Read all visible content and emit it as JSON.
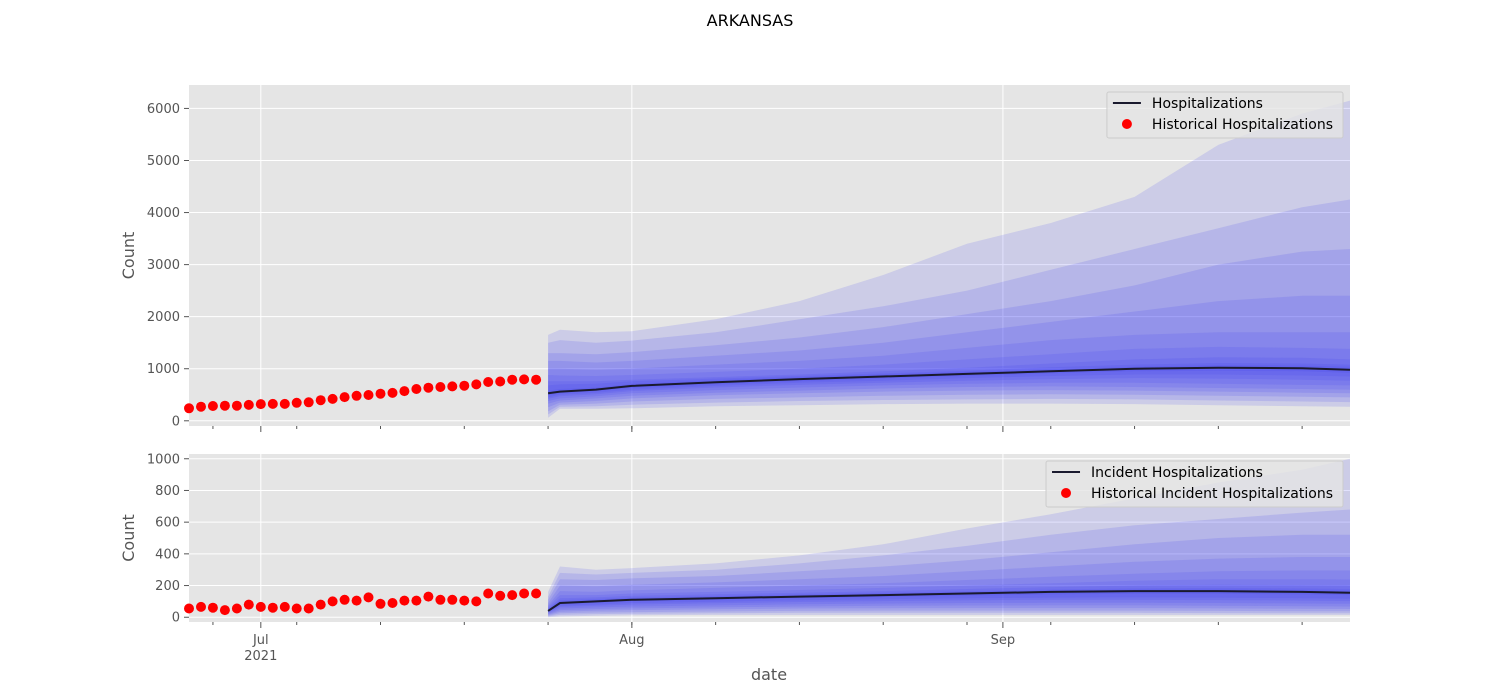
{
  "title": "ARKANSAS",
  "xlabel": "date",
  "x_ticks": [
    {
      "date": "2021-07-01",
      "label": "Jul",
      "sublabel": "2021"
    },
    {
      "date": "2021-08-01",
      "label": "Aug",
      "sublabel": ""
    },
    {
      "date": "2021-09-01",
      "label": "Sep",
      "sublabel": ""
    }
  ],
  "colors": {
    "background": "#e5e5e5",
    "grid": "#ffffff",
    "band": "#3b3bf0",
    "median": "#1a1a2e",
    "historical": "#ff0000"
  },
  "chart_data": [
    {
      "type": "line",
      "ylabel": "Count",
      "xlim": [
        "2021-06-25",
        "2021-09-30"
      ],
      "ylim": [
        -100,
        6450
      ],
      "yticks": [
        0,
        1000,
        2000,
        3000,
        4000,
        5000,
        6000
      ],
      "grid": true,
      "legend_position": "top-right",
      "legend": [
        {
          "label": "Hospitalizations",
          "marker": "line"
        },
        {
          "label": "Historical Hospitalizations",
          "marker": "dot"
        }
      ],
      "historical": {
        "name": "Historical Hospitalizations",
        "start": "2021-06-25",
        "values": [
          240,
          270,
          285,
          290,
          290,
          305,
          320,
          325,
          325,
          345,
          355,
          395,
          420,
          455,
          480,
          495,
          520,
          535,
          570,
          610,
          635,
          650,
          660,
          675,
          700,
          745,
          755,
          790,
          795,
          790
        ]
      },
      "forecast": {
        "name": "Hospitalizations",
        "x": [
          "2021-07-25",
          "2021-07-26",
          "2021-07-29",
          "2021-08-01",
          "2021-08-08",
          "2021-08-15",
          "2021-08-22",
          "2021-08-29",
          "2021-09-05",
          "2021-09-12",
          "2021-09-19",
          "2021-09-26",
          "2021-09-30"
        ],
        "median": [
          530,
          560,
          600,
          670,
          740,
          800,
          850,
          900,
          950,
          1000,
          1020,
          1010,
          980
        ],
        "bands": [
          {
            "level": 0.98,
            "lower": [
              60,
              230,
              230,
              240,
              280,
              300,
              320,
              330,
              330,
              320,
              300,
              280,
              270
            ],
            "upper": [
              1650,
              1750,
              1700,
              1720,
              1950,
              2300,
              2800,
              3400,
              3800,
              4300,
              5300,
              5900,
              6150
            ]
          },
          {
            "level": 0.95,
            "lower": [
              120,
              270,
              280,
              310,
              350,
              380,
              400,
              410,
              420,
              410,
              390,
              370,
              360
            ],
            "upper": [
              1500,
              1550,
              1500,
              1540,
              1700,
              1950,
              2200,
              2500,
              2900,
              3300,
              3700,
              4100,
              4250
            ]
          },
          {
            "level": 0.9,
            "lower": [
              180,
              310,
              330,
              370,
              420,
              450,
              480,
              500,
              510,
              500,
              480,
              460,
              450
            ],
            "upper": [
              1300,
              1300,
              1280,
              1320,
              1450,
              1600,
              1800,
              2050,
              2300,
              2600,
              3000,
              3250,
              3300
            ]
          },
          {
            "level": 0.8,
            "lower": [
              260,
              350,
              380,
              430,
              490,
              530,
              560,
              580,
              590,
              580,
              560,
              540,
              530
            ],
            "upper": [
              1150,
              1150,
              1120,
              1150,
              1250,
              1350,
              1500,
              1700,
              1900,
              2100,
              2300,
              2400,
              2400
            ]
          },
          {
            "level": 0.7,
            "lower": [
              330,
              390,
              430,
              480,
              540,
              580,
              620,
              650,
              660,
              650,
              630,
              610,
              600
            ],
            "upper": [
              1000,
              1000,
              980,
              1000,
              1080,
              1150,
              1250,
              1400,
              1550,
              1650,
              1700,
              1700,
              1700
            ]
          },
          {
            "level": 0.6,
            "lower": [
              380,
              430,
              470,
              530,
              590,
              640,
              680,
              710,
              730,
              730,
              710,
              690,
              680
            ],
            "upper": [
              880,
              870,
              860,
              880,
              940,
              1000,
              1080,
              1180,
              1280,
              1380,
              1420,
              1400,
              1380
            ]
          },
          {
            "level": 0.5,
            "lower": [
              420,
              470,
              510,
              570,
              640,
              690,
              730,
              770,
              800,
              820,
              810,
              790,
              770
            ],
            "upper": [
              760,
              760,
              760,
              790,
              840,
              890,
              950,
              1020,
              1100,
              1180,
              1220,
              1210,
              1180
            ]
          },
          {
            "level": 0.4,
            "lower": [
              450,
              500,
              540,
              600,
              670,
              730,
              770,
              820,
              860,
              890,
              890,
              870,
              850
            ],
            "upper": [
              680,
              700,
              710,
              760,
              810,
              860,
              910,
              960,
              1030,
              1080,
              1110,
              1100,
              1080
            ]
          },
          {
            "level": 0.2,
            "lower": [
              490,
              530,
              570,
              630,
              700,
              760,
              810,
              860,
              910,
              950,
              960,
              950,
              920
            ],
            "upper": [
              580,
              610,
              640,
              710,
              780,
              840,
              890,
              940,
              990,
              1040,
              1070,
              1060,
              1040
            ]
          }
        ]
      }
    },
    {
      "type": "line",
      "ylabel": "Count",
      "xlim": [
        "2021-06-25",
        "2021-09-30"
      ],
      "ylim": [
        -30,
        1030
      ],
      "yticks": [
        0,
        200,
        400,
        600,
        800,
        1000
      ],
      "grid": true,
      "legend_position": "top-right",
      "legend": [
        {
          "label": "Incident Hospitalizations",
          "marker": "line"
        },
        {
          "label": "Historical Incident Hospitalizations",
          "marker": "dot"
        }
      ],
      "historical": {
        "name": "Historical Incident Hospitalizations",
        "start": "2021-06-25",
        "values": [
          55,
          65,
          60,
          45,
          55,
          80,
          65,
          60,
          65,
          55,
          55,
          80,
          100,
          110,
          105,
          125,
          85,
          90,
          105,
          105,
          130,
          110,
          110,
          105,
          100,
          150,
          135,
          140,
          150,
          150
        ]
      },
      "forecast": {
        "name": "Incident Hospitalizations",
        "x": [
          "2021-07-25",
          "2021-07-26",
          "2021-07-29",
          "2021-08-01",
          "2021-08-08",
          "2021-08-15",
          "2021-08-22",
          "2021-08-29",
          "2021-09-05",
          "2021-09-12",
          "2021-09-19",
          "2021-09-26",
          "2021-09-30"
        ],
        "median": [
          40,
          90,
          100,
          110,
          120,
          130,
          140,
          150,
          160,
          165,
          165,
          160,
          155
        ],
        "bands": [
          {
            "level": 0.98,
            "lower": [
              0,
              5,
              10,
              12,
              15,
              15,
              15,
              15,
              15,
              15,
              15,
              15,
              15
            ],
            "upper": [
              160,
              320,
              300,
              310,
              340,
              390,
              460,
              560,
              650,
              750,
              850,
              930,
              1000
            ]
          },
          {
            "level": 0.95,
            "lower": [
              5,
              15,
              20,
              22,
              25,
              28,
              28,
              28,
              28,
              28,
              26,
              25,
              25
            ],
            "upper": [
              130,
              280,
              270,
              280,
              300,
              340,
              390,
              450,
              520,
              580,
              620,
              660,
              680
            ]
          },
          {
            "level": 0.9,
            "lower": [
              10,
              25,
              30,
              32,
              36,
              40,
              42,
              42,
              42,
              42,
              40,
              38,
              38
            ],
            "upper": [
              110,
              240,
              235,
              245,
              260,
              290,
              320,
              360,
              410,
              460,
              500,
              520,
              520
            ]
          },
          {
            "level": 0.8,
            "lower": [
              15,
              35,
              42,
              45,
              50,
              55,
              57,
              58,
              58,
              58,
              56,
              54,
              52
            ],
            "upper": [
              90,
              200,
              195,
              205,
              220,
              240,
              260,
              290,
              320,
              350,
              370,
              380,
              380
            ]
          },
          {
            "level": 0.7,
            "lower": [
              20,
              45,
              52,
              56,
              62,
              68,
              72,
              74,
              75,
              75,
              73,
              70,
              68
            ],
            "upper": [
              75,
              165,
              160,
              170,
              185,
              200,
              215,
              235,
              255,
              275,
              290,
              295,
              295
            ]
          },
          {
            "level": 0.6,
            "lower": [
              25,
              55,
              62,
              68,
              75,
              82,
              87,
              90,
              92,
              92,
              90,
              87,
              85
            ],
            "upper": [
              65,
              140,
              140,
              150,
              160,
              172,
              185,
              200,
              215,
              230,
              240,
              240,
              238
            ]
          },
          {
            "level": 0.5,
            "lower": [
              30,
              65,
              72,
              80,
              88,
              96,
              102,
              106,
              110,
              110,
              108,
              105,
              102
            ],
            "upper": [
              55,
              120,
              125,
              135,
              145,
              155,
              165,
              178,
              190,
              200,
              205,
              203,
              200
            ]
          },
          {
            "level": 0.4,
            "lower": [
              33,
              72,
              80,
              90,
              98,
              107,
              114,
              120,
              124,
              126,
              124,
              120,
              117
            ],
            "upper": [
              50,
              108,
              115,
              125,
              134,
              144,
              154,
              164,
              175,
              182,
              185,
              182,
              178
            ]
          },
          {
            "level": 0.2,
            "lower": [
              37,
              82,
              92,
              102,
              110,
              120,
              128,
              136,
              144,
              148,
              148,
              144,
              140
            ],
            "upper": [
              45,
              98,
              108,
              118,
              128,
              138,
              148,
              158,
              168,
              174,
              175,
              172,
              168
            ]
          }
        ]
      }
    }
  ]
}
